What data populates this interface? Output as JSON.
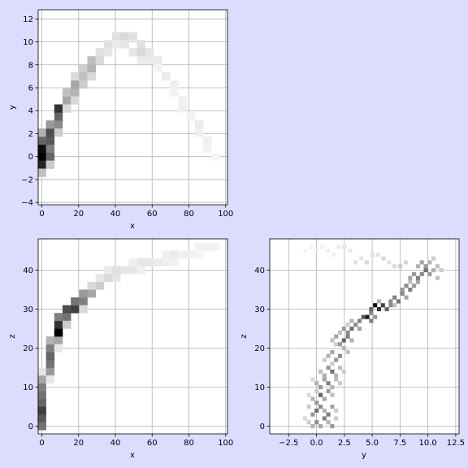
{
  "chart_data": [
    {
      "type": "heatmap",
      "title": "",
      "xlabel": "x",
      "ylabel": "y",
      "xlim": [
        -2,
        101
      ],
      "ylim": [
        -4.2,
        12.8
      ],
      "xticks": [
        0,
        20,
        40,
        60,
        80,
        100
      ],
      "yticks": [
        -4,
        -2,
        0,
        2,
        4,
        6,
        8,
        10,
        12
      ],
      "xtick_labels": [
        "0",
        "20",
        "40",
        "60",
        "80",
        "100"
      ],
      "ytick_labels": [
        "−4",
        "−2",
        "0",
        "2",
        "4",
        "6",
        "8",
        "10",
        "12"
      ],
      "grid": true,
      "bin_size": [
        4.5,
        0.7
      ],
      "cells": [
        [
          0,
          0,
          1.0
        ],
        [
          0,
          0.7,
          0.95
        ],
        [
          0,
          -0.7,
          0.85
        ],
        [
          0,
          1.4,
          0.6
        ],
        [
          0,
          -1.4,
          0.25
        ],
        [
          0,
          2.1,
          0.3
        ],
        [
          4.5,
          0,
          0.6
        ],
        [
          4.5,
          0.7,
          0.5
        ],
        [
          4.5,
          1.4,
          0.65
        ],
        [
          4.5,
          2.1,
          0.7
        ],
        [
          4.5,
          2.8,
          0.4
        ],
        [
          4.5,
          -0.7,
          0.2
        ],
        [
          9,
          2.8,
          0.45
        ],
        [
          9,
          3.5,
          0.6
        ],
        [
          9,
          4.2,
          0.8
        ],
        [
          9,
          2.1,
          0.2
        ],
        [
          13.5,
          4.9,
          0.35
        ],
        [
          13.5,
          5.6,
          0.25
        ],
        [
          13.5,
          4.2,
          0.15
        ],
        [
          18,
          5.6,
          0.3
        ],
        [
          18,
          6.3,
          0.35
        ],
        [
          18,
          4.9,
          0.15
        ],
        [
          18,
          7.0,
          0.15
        ],
        [
          22.5,
          6.3,
          0.2
        ],
        [
          22.5,
          7.0,
          0.25
        ],
        [
          22.5,
          7.7,
          0.2
        ],
        [
          27,
          7.7,
          0.3
        ],
        [
          27,
          8.4,
          0.25
        ],
        [
          27,
          7.0,
          0.15
        ],
        [
          31.5,
          8.4,
          0.15
        ],
        [
          31.5,
          9.1,
          0.12
        ],
        [
          36,
          9.1,
          0.1
        ],
        [
          36,
          9.8,
          0.12
        ],
        [
          40.5,
          10.5,
          0.12
        ],
        [
          40.5,
          9.8,
          0.08
        ],
        [
          45,
          10.5,
          0.15
        ],
        [
          45,
          9.8,
          0.1
        ],
        [
          49.5,
          10.5,
          0.12
        ],
        [
          49.5,
          9.1,
          0.1
        ],
        [
          54,
          9.1,
          0.15
        ],
        [
          54,
          9.8,
          0.12
        ],
        [
          54,
          8.4,
          0.08
        ],
        [
          58.5,
          9.1,
          0.1
        ],
        [
          58.5,
          8.4,
          0.08
        ],
        [
          63,
          8.4,
          0.08
        ],
        [
          63,
          7.7,
          0.05
        ],
        [
          67.5,
          7.0,
          0.08
        ],
        [
          72,
          6.3,
          0.06
        ],
        [
          72,
          5.6,
          0.05
        ],
        [
          76.5,
          4.9,
          0.06
        ],
        [
          76.5,
          4.2,
          0.06
        ],
        [
          81,
          3.5,
          0.05
        ],
        [
          85.5,
          2.8,
          0.08
        ],
        [
          85.5,
          2.1,
          0.06
        ],
        [
          90,
          1.4,
          0.06
        ],
        [
          90,
          0.7,
          0.05
        ],
        [
          94.5,
          0,
          0.04
        ]
      ]
    },
    {
      "type": "heatmap",
      "title": "",
      "xlabel": "x",
      "ylabel": "z",
      "xlim": [
        -2,
        101
      ],
      "ylim": [
        -2,
        48
      ],
      "xticks": [
        0,
        20,
        40,
        60,
        80,
        100
      ],
      "yticks": [
        0,
        10,
        20,
        30,
        40
      ],
      "xtick_labels": [
        "0",
        "20",
        "40",
        "60",
        "80",
        "100"
      ],
      "ytick_labels": [
        "0",
        "10",
        "20",
        "30",
        "40"
      ],
      "grid": true,
      "bin_size": [
        4.5,
        2.0
      ],
      "cells": [
        [
          0,
          0,
          0.55
        ],
        [
          0,
          2,
          0.65
        ],
        [
          0,
          4,
          0.75
        ],
        [
          0,
          6,
          0.6
        ],
        [
          0,
          8,
          0.55
        ],
        [
          0,
          10,
          0.5
        ],
        [
          0,
          12,
          0.35
        ],
        [
          0,
          14,
          0.1
        ],
        [
          4.5,
          14,
          0.4
        ],
        [
          4.5,
          16,
          0.55
        ],
        [
          4.5,
          18,
          0.6
        ],
        [
          4.5,
          20,
          0.5
        ],
        [
          4.5,
          22,
          0.3
        ],
        [
          4.5,
          12,
          0.1
        ],
        [
          9,
          22,
          0.35
        ],
        [
          9,
          24,
          1.0
        ],
        [
          9,
          26,
          0.8
        ],
        [
          9,
          28,
          0.5
        ],
        [
          9,
          20,
          0.1
        ],
        [
          13.5,
          28,
          0.55
        ],
        [
          13.5,
          30,
          0.7
        ],
        [
          13.5,
          26,
          0.2
        ],
        [
          18,
          30,
          0.75
        ],
        [
          18,
          32,
          0.55
        ],
        [
          22.5,
          32,
          0.5
        ],
        [
          22.5,
          34,
          0.4
        ],
        [
          22.5,
          30,
          0.15
        ],
        [
          27,
          34,
          0.35
        ],
        [
          27,
          36,
          0.15
        ],
        [
          31.5,
          36,
          0.2
        ],
        [
          31.5,
          38,
          0.1
        ],
        [
          36,
          38,
          0.15
        ],
        [
          36,
          40,
          0.08
        ],
        [
          40.5,
          38,
          0.1
        ],
        [
          40.5,
          40,
          0.12
        ],
        [
          45,
          40,
          0.1
        ],
        [
          49.5,
          40,
          0.1
        ],
        [
          49.5,
          42,
          0.06
        ],
        [
          54,
          42,
          0.1
        ],
        [
          54,
          40,
          0.06
        ],
        [
          58.5,
          42,
          0.1
        ],
        [
          63,
          42,
          0.08
        ],
        [
          67.5,
          42,
          0.06
        ],
        [
          67.5,
          44,
          0.06
        ],
        [
          72,
          44,
          0.08
        ],
        [
          72,
          42,
          0.05
        ],
        [
          76.5,
          44,
          0.06
        ],
        [
          81,
          44,
          0.06
        ],
        [
          85.5,
          46,
          0.05
        ],
        [
          85.5,
          44,
          0.04
        ],
        [
          90,
          46,
          0.06
        ],
        [
          94.5,
          46,
          0.05
        ]
      ]
    },
    {
      "type": "heatmap",
      "title": "",
      "xlabel": "y",
      "ylabel": "z",
      "xlim": [
        -4.2,
        12.8
      ],
      "ylim": [
        -2,
        48
      ],
      "xticks": [
        -2.5,
        0,
        2.5,
        5,
        7.5,
        10,
        12.5
      ],
      "yticks": [
        0,
        10,
        20,
        30,
        40
      ],
      "xtick_labels": [
        "−2.5",
        "0.0",
        "2.5",
        "5.0",
        "7.5",
        "10.0",
        "12.5"
      ],
      "ytick_labels": [
        "0",
        "10",
        "20",
        "30",
        "40"
      ],
      "grid": true,
      "bin_size": [
        0.35,
        1.0
      ],
      "cells": [
        [
          -0.7,
          1,
          0.2
        ],
        [
          -0.35,
          0,
          0.3
        ],
        [
          0,
          1,
          0.45
        ],
        [
          0.35,
          0,
          0.35
        ],
        [
          0.7,
          2,
          0.5
        ],
        [
          1.05,
          1,
          0.3
        ],
        [
          1.4,
          0,
          0.4
        ],
        [
          -1.05,
          2,
          0.15
        ],
        [
          1.75,
          2,
          0.2
        ],
        [
          -0.35,
          3,
          0.4
        ],
        [
          0,
          4,
          0.55
        ],
        [
          0.35,
          5,
          0.45
        ],
        [
          0.7,
          4,
          0.3
        ],
        [
          1.05,
          3,
          0.5
        ],
        [
          1.4,
          5,
          0.35
        ],
        [
          -0.7,
          5,
          0.2
        ],
        [
          1.75,
          4,
          0.2
        ],
        [
          -0.35,
          7,
          0.3
        ],
        [
          0,
          6,
          0.4
        ],
        [
          0.35,
          8,
          0.6
        ],
        [
          0.7,
          7,
          0.35
        ],
        [
          1.05,
          9,
          0.4
        ],
        [
          1.4,
          8,
          0.25
        ],
        [
          0,
          9,
          0.2
        ],
        [
          -0.7,
          8,
          0.15
        ],
        [
          0,
          11,
          0.3
        ],
        [
          0.35,
          10,
          0.4
        ],
        [
          0.7,
          12,
          0.35
        ],
        [
          1.05,
          11,
          0.5
        ],
        [
          1.4,
          10,
          0.3
        ],
        [
          1.75,
          12,
          0.25
        ],
        [
          2.1,
          11,
          0.2
        ],
        [
          -0.35,
          12,
          0.15
        ],
        [
          0.35,
          14,
          0.25
        ],
        [
          0.7,
          13,
          0.3
        ],
        [
          1.05,
          15,
          0.4
        ],
        [
          1.4,
          14,
          0.55
        ],
        [
          1.75,
          13,
          0.3
        ],
        [
          2.1,
          15,
          0.25
        ],
        [
          2.45,
          14,
          0.2
        ],
        [
          1.4,
          16,
          0.2
        ],
        [
          0.7,
          17,
          0.2
        ],
        [
          1.05,
          18,
          0.3
        ],
        [
          1.4,
          19,
          0.35
        ],
        [
          1.75,
          17,
          0.4
        ],
        [
          2.1,
          18,
          0.45
        ],
        [
          2.45,
          20,
          0.3
        ],
        [
          2.8,
          19,
          0.25
        ],
        [
          1.75,
          21,
          0.2
        ],
        [
          1.4,
          22,
          0.25
        ],
        [
          1.75,
          23,
          0.35
        ],
        [
          2.1,
          21,
          0.4
        ],
        [
          2.45,
          22,
          0.6
        ],
        [
          2.8,
          23,
          0.5
        ],
        [
          3.15,
          22,
          0.3
        ],
        [
          2.1,
          24,
          0.25
        ],
        [
          2.45,
          25,
          0.4
        ],
        [
          2.8,
          24,
          0.45
        ],
        [
          3.15,
          25,
          0.55
        ],
        [
          3.5,
          26,
          0.45
        ],
        [
          3.85,
          25,
          0.35
        ],
        [
          3.15,
          27,
          0.3
        ],
        [
          2.8,
          26,
          0.2
        ],
        [
          3.85,
          27,
          0.5
        ],
        [
          4.2,
          28,
          0.65
        ],
        [
          4.55,
          28,
          0.9
        ],
        [
          4.9,
          27,
          0.5
        ],
        [
          4.9,
          29,
          0.45
        ],
        [
          5.25,
          28,
          0.4
        ],
        [
          4.9,
          30,
          0.6
        ],
        [
          5.25,
          31,
          0.95
        ],
        [
          5.6,
          30,
          0.8
        ],
        [
          5.95,
          31,
          0.75
        ],
        [
          6.3,
          30,
          0.6
        ],
        [
          6.65,
          31,
          0.45
        ],
        [
          5.6,
          32,
          0.3
        ],
        [
          6.65,
          32,
          0.45
        ],
        [
          7.0,
          33,
          0.5
        ],
        [
          7.35,
          32,
          0.55
        ],
        [
          7.7,
          34,
          0.45
        ],
        [
          8.05,
          33,
          0.35
        ],
        [
          7.0,
          31,
          0.25
        ],
        [
          7.7,
          35,
          0.4
        ],
        [
          8.05,
          36,
          0.45
        ],
        [
          8.4,
          35,
          0.5
        ],
        [
          8.75,
          36,
          0.4
        ],
        [
          9.1,
          37,
          0.35
        ],
        [
          8.4,
          37,
          0.25
        ],
        [
          8.4,
          38,
          0.35
        ],
        [
          8.75,
          39,
          0.4
        ],
        [
          9.1,
          38,
          0.5
        ],
        [
          9.45,
          39,
          0.45
        ],
        [
          9.8,
          40,
          0.55
        ],
        [
          10.15,
          39,
          0.4
        ],
        [
          10.5,
          40,
          0.3
        ],
        [
          10.85,
          38,
          0.25
        ],
        [
          9.1,
          41,
          0.3
        ],
        [
          9.45,
          42,
          0.35
        ],
        [
          9.8,
          41,
          0.4
        ],
        [
          10.15,
          42,
          0.3
        ],
        [
          10.5,
          43,
          0.2
        ],
        [
          10.85,
          41,
          0.25
        ],
        [
          11.2,
          40,
          0.2
        ],
        [
          8.0,
          42,
          0.15
        ],
        [
          7.5,
          41,
          0.2
        ],
        [
          7.0,
          41,
          0.15
        ],
        [
          6.5,
          42,
          0.12
        ],
        [
          6.0,
          43,
          0.15
        ],
        [
          5.5,
          44,
          0.1
        ],
        [
          5.0,
          44,
          0.12
        ],
        [
          4.5,
          42,
          0.15
        ],
        [
          4.0,
          43,
          0.1
        ],
        [
          3.5,
          42,
          0.12
        ],
        [
          3.0,
          45,
          0.08
        ],
        [
          2.5,
          46,
          0.1
        ],
        [
          2.0,
          46,
          0.08
        ],
        [
          1.5,
          44,
          0.06
        ],
        [
          1.0,
          45,
          0.06
        ],
        [
          0.5,
          46,
          0.05
        ],
        [
          0,
          45,
          0.06
        ],
        [
          -0.5,
          46,
          0.05
        ],
        [
          -1.0,
          45,
          0.04
        ]
      ]
    }
  ]
}
